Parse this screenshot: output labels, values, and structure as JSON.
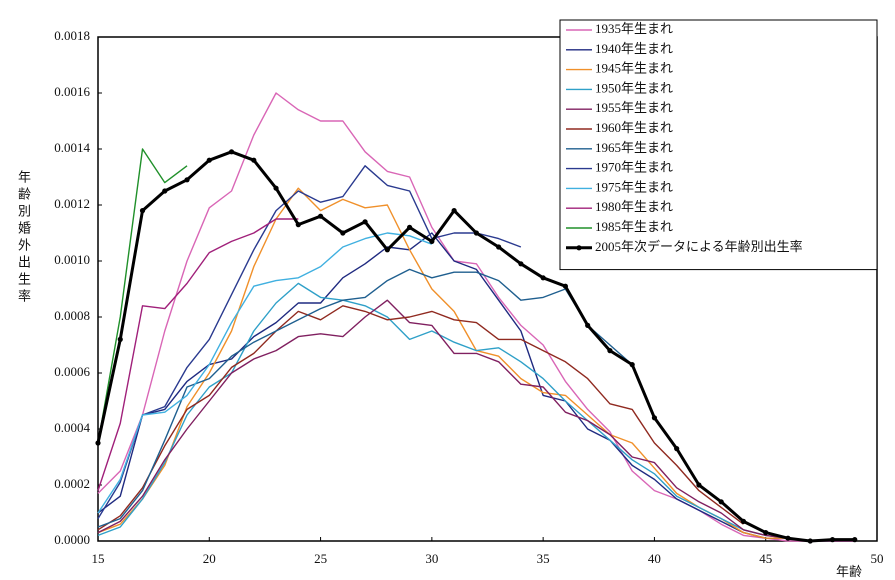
{
  "chart_data": {
    "type": "line",
    "ylabel": "年齢別婚外出生率",
    "xlabel": "年齢",
    "x": [
      15,
      16,
      17,
      18,
      19,
      20,
      21,
      22,
      23,
      24,
      25,
      26,
      27,
      28,
      29,
      30,
      31,
      32,
      33,
      34,
      35,
      36,
      37,
      38,
      39,
      40,
      41,
      42,
      43,
      44,
      45,
      46,
      47,
      48,
      49
    ],
    "xlim": [
      15,
      50
    ],
    "xticks": [
      15,
      20,
      25,
      30,
      35,
      40,
      45,
      50
    ],
    "ylim": [
      0,
      0.0018
    ],
    "yticks": [
      {
        "value": 0,
        "label": "0.0000"
      },
      {
        "value": 0.0002,
        "label": "0.0002"
      },
      {
        "value": 0.0004,
        "label": "0.0004"
      },
      {
        "value": 0.0006,
        "label": "0.0006"
      },
      {
        "value": 0.0008,
        "label": "0.0008"
      },
      {
        "value": 0.001,
        "label": "0.0010"
      },
      {
        "value": 0.0012,
        "label": "0.0012"
      },
      {
        "value": 0.0014,
        "label": "0.0014"
      },
      {
        "value": 0.0016,
        "label": "0.0016"
      },
      {
        "value": 0.0018,
        "label": "0.0018"
      }
    ],
    "grid": false,
    "legend": "upper right",
    "series": [
      {
        "name": "1935年生まれ",
        "color": "#d966b6",
        "values": [
          0.00017,
          0.00025,
          0.00045,
          0.00075,
          0.001,
          0.00119,
          0.00125,
          0.00145,
          0.0016,
          0.00154,
          0.0015,
          0.0015,
          0.00139,
          0.00132,
          0.0013,
          0.00112,
          0.001,
          0.00099,
          0.00087,
          0.00077,
          0.0007,
          0.00057,
          0.00047,
          0.00039,
          0.00025,
          0.00018,
          0.00015,
          0.00011,
          6e-05,
          2e-05,
          1e-05,
          0,
          0,
          0,
          0
        ]
      },
      {
        "name": "1940年生まれ",
        "color": "#1f2a80",
        "values": [
          0.0001,
          0.00016,
          0.00045,
          0.00047,
          0.00057,
          0.00063,
          0.00065,
          0.00073,
          0.00078,
          0.00085,
          0.00085,
          0.00094,
          0.00099,
          0.00105,
          0.00104,
          0.0011,
          0.001,
          0.00097,
          0.00086,
          0.00075,
          0.00052,
          0.0005,
          0.0004,
          0.00036,
          0.00027,
          0.00022,
          0.00015,
          0.00011,
          7e-05,
          3e-05,
          1e-05,
          1e-05,
          0,
          0,
          0
        ]
      },
      {
        "name": "1945年生まれ",
        "color": "#f0902a",
        "values": [
          3e-05,
          6e-05,
          0.00015,
          0.00027,
          0.00048,
          0.0006,
          0.00075,
          0.00098,
          0.00115,
          0.00126,
          0.00118,
          0.00122,
          0.00119,
          0.0012,
          0.00104,
          0.0009,
          0.00082,
          0.00068,
          0.00066,
          0.00058,
          0.00053,
          0.00052,
          0.00045,
          0.00038,
          0.00035,
          0.00026,
          0.00017,
          0.00012,
          8e-05,
          3e-05,
          1e-05,
          1e-05,
          0,
          0,
          0
        ]
      },
      {
        "name": "1950年生まれ",
        "color": "#2fa0c8",
        "values": [
          2e-05,
          5e-05,
          0.00015,
          0.00028,
          0.00045,
          0.00055,
          0.0006,
          0.00075,
          0.00085,
          0.00092,
          0.00087,
          0.00086,
          0.00084,
          0.0008,
          0.00072,
          0.00075,
          0.00071,
          0.00068,
          0.00069,
          0.00064,
          0.00058,
          0.0005,
          0.00043,
          0.00036,
          0.00029,
          0.00024,
          0.00016,
          0.00012,
          8e-05,
          4e-05,
          2e-05,
          1e-05,
          0,
          0,
          0
        ]
      },
      {
        "name": "1955年生まれ",
        "color": "#802060",
        "values": [
          3e-05,
          7e-05,
          0.00016,
          0.00029,
          0.0004,
          0.0005,
          0.0006,
          0.00065,
          0.00068,
          0.00073,
          0.00074,
          0.00073,
          0.0008,
          0.00086,
          0.00078,
          0.00077,
          0.00067,
          0.00067,
          0.00064,
          0.00056,
          0.00055,
          0.00046,
          0.00043,
          0.00038,
          0.0003,
          0.00028,
          0.00019,
          0.00014,
          0.0001,
          4e-05,
          2e-05,
          1e-05,
          0,
          0,
          0
        ]
      },
      {
        "name": "1960年生まれ",
        "color": "#902a20",
        "values": [
          4e-05,
          9e-05,
          0.00019,
          0.00034,
          0.00047,
          0.00052,
          0.00062,
          0.00067,
          0.00075,
          0.00082,
          0.00079,
          0.00084,
          0.00082,
          0.00079,
          0.0008,
          0.00082,
          0.00079,
          0.00078,
          0.00072,
          0.00072,
          0.00068,
          0.00064,
          0.00058,
          0.00049,
          0.00047,
          0.00035,
          0.00027,
          0.00018,
          0.00012,
          6e-05,
          null,
          null,
          null,
          null,
          null
        ]
      },
      {
        "name": "1965年生まれ",
        "color": "#1f5f8f",
        "values": [
          5e-05,
          8e-05,
          0.00018,
          0.00036,
          0.00055,
          0.00058,
          0.00066,
          0.00071,
          0.00075,
          0.00079,
          0.00083,
          0.00086,
          0.00087,
          0.00093,
          0.00097,
          0.00094,
          0.00096,
          0.00096,
          0.00093,
          0.00086,
          0.00087,
          0.0009,
          0.00077,
          0.0007,
          0.00063,
          null,
          null,
          null,
          null,
          null,
          null,
          null,
          null,
          null,
          null
        ]
      },
      {
        "name": "1970年生まれ",
        "color": "#2a3a8f",
        "values": [
          8e-05,
          0.00021,
          0.00045,
          0.00048,
          0.00062,
          0.00072,
          0.00088,
          0.00104,
          0.00118,
          0.00125,
          0.00121,
          0.00123,
          0.00134,
          0.00127,
          0.00125,
          0.00108,
          0.0011,
          0.0011,
          0.00108,
          0.00105,
          null,
          null,
          null,
          null,
          null,
          null,
          null,
          null,
          null,
          null,
          null,
          null,
          null,
          null,
          null
        ]
      },
      {
        "name": "1975年生まれ",
        "color": "#40b0e0",
        "values": [
          0.0001,
          0.00022,
          0.00045,
          0.00046,
          0.00052,
          0.00063,
          0.00078,
          0.00091,
          0.00093,
          0.00094,
          0.00098,
          0.00105,
          0.00108,
          0.0011,
          0.00109,
          0.00106,
          null,
          null,
          null,
          null,
          null,
          null,
          null,
          null,
          null,
          null,
          null,
          null,
          null,
          null,
          null,
          null,
          null,
          null,
          null
        ]
      },
      {
        "name": "1980年生まれ",
        "color": "#a0207a",
        "values": [
          0.00018,
          0.00042,
          0.00084,
          0.00083,
          0.00092,
          0.00103,
          0.00107,
          0.0011,
          0.00115,
          0.00115,
          null,
          null,
          null,
          null,
          null,
          null,
          null,
          null,
          null,
          null,
          null,
          null,
          null,
          null,
          null,
          null,
          null,
          null,
          null,
          null,
          null,
          null,
          null,
          null,
          null
        ]
      },
      {
        "name": "1985年生まれ",
        "color": "#20902a",
        "values": [
          0.00035,
          0.0008,
          0.0014,
          0.00128,
          0.00134,
          null,
          null,
          null,
          null,
          null,
          null,
          null,
          null,
          null,
          null,
          null,
          null,
          null,
          null,
          null,
          null,
          null,
          null,
          null,
          null,
          null,
          null,
          null,
          null,
          null,
          null,
          null,
          null,
          null,
          null
        ]
      },
      {
        "name": "2005年次データによる年齢別出生率",
        "color": "#000000",
        "line_width": 3,
        "marker": true,
        "values": [
          0.00035,
          0.00072,
          0.00118,
          0.00125,
          0.00129,
          0.00136,
          0.00139,
          0.00136,
          0.00126,
          0.00113,
          0.00116,
          0.0011,
          0.00114,
          0.00104,
          0.00112,
          0.00107,
          0.00118,
          0.0011,
          0.00105,
          0.00099,
          0.00094,
          0.00091,
          0.00077,
          0.00068,
          0.00063,
          0.00044,
          0.00033,
          0.0002,
          0.00014,
          7e-05,
          3e-05,
          1e-05,
          0,
          5e-06,
          5e-06
        ]
      }
    ]
  }
}
